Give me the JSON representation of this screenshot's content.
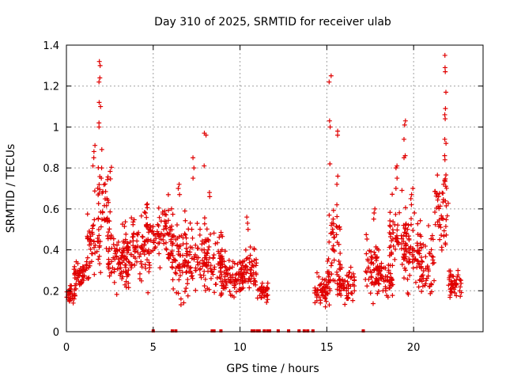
{
  "chart_data": {
    "type": "scatter",
    "title": "Day 310 of 2025, SRMTID for receiver ulab",
    "xlabel": "GPS time / hours",
    "ylabel": "SRMTID / TECUs",
    "xlim": [
      0,
      24
    ],
    "ylim": [
      0,
      1.4
    ],
    "xticks": [
      0,
      5,
      10,
      15,
      20
    ],
    "yticks": [
      0,
      0.2,
      0.4,
      0.6,
      0.8,
      1,
      1.2,
      1.4
    ],
    "xtick_labels": [
      "0",
      "5",
      "10",
      "15",
      "20"
    ],
    "ytick_labels": [
      "0",
      "0.2",
      "0.4",
      "0.6",
      "0.8",
      "1",
      "1.2",
      "1.4"
    ],
    "grid": true,
    "marker": "+",
    "color": "#e00000",
    "series": [
      {
        "name": "SRMTID",
        "clusters": [
          {
            "x_start": 0.0,
            "x_end": 0.5,
            "level": 0.13,
            "spread": 0.04
          },
          {
            "x_start": 0.4,
            "x_end": 1.3,
            "level": 0.23,
            "spread": 0.06
          },
          {
            "x_start": 1.2,
            "x_end": 2.0,
            "level": 0.4,
            "spread": 0.15
          },
          {
            "x_start": 1.8,
            "x_end": 2.6,
            "level": 0.55,
            "spread": 0.18
          },
          {
            "x_start": 2.4,
            "x_end": 3.6,
            "level": 0.3,
            "spread": 0.12
          },
          {
            "x_start": 3.2,
            "x_end": 4.8,
            "level": 0.35,
            "spread": 0.12
          },
          {
            "x_start": 4.6,
            "x_end": 6.2,
            "level": 0.42,
            "spread": 0.12
          },
          {
            "x_start": 6.0,
            "x_end": 7.0,
            "level": 0.3,
            "spread": 0.15
          },
          {
            "x_start": 6.8,
            "x_end": 8.2,
            "level": 0.32,
            "spread": 0.15
          },
          {
            "x_start": 8.0,
            "x_end": 9.0,
            "level": 0.3,
            "spread": 0.12
          },
          {
            "x_start": 8.8,
            "x_end": 10.2,
            "level": 0.22,
            "spread": 0.08
          },
          {
            "x_start": 10.0,
            "x_end": 11.0,
            "level": 0.25,
            "spread": 0.1
          },
          {
            "x_start": 11.0,
            "x_end": 11.6,
            "level": 0.15,
            "spread": 0.04
          },
          {
            "x_start": 14.3,
            "x_end": 15.2,
            "level": 0.15,
            "spread": 0.06
          },
          {
            "x_start": 15.0,
            "x_end": 15.8,
            "level": 0.35,
            "spread": 0.18
          },
          {
            "x_start": 15.6,
            "x_end": 16.6,
            "level": 0.18,
            "spread": 0.07
          },
          {
            "x_start": 17.2,
            "x_end": 18.0,
            "level": 0.28,
            "spread": 0.14
          },
          {
            "x_start": 17.8,
            "x_end": 18.8,
            "level": 0.22,
            "spread": 0.08
          },
          {
            "x_start": 18.6,
            "x_end": 19.6,
            "level": 0.4,
            "spread": 0.15
          },
          {
            "x_start": 19.4,
            "x_end": 20.4,
            "level": 0.35,
            "spread": 0.15
          },
          {
            "x_start": 20.2,
            "x_end": 21.2,
            "level": 0.3,
            "spread": 0.12
          },
          {
            "x_start": 21.2,
            "x_end": 22.0,
            "level": 0.55,
            "spread": 0.18
          },
          {
            "x_start": 22.0,
            "x_end": 22.8,
            "level": 0.18,
            "spread": 0.06
          }
        ],
        "peaks": [
          {
            "x": 1.9,
            "values": [
              1.32,
              1.3,
              1.24,
              1.22,
              1.12,
              1.1,
              1.02,
              1.0
            ]
          },
          {
            "x": 1.6,
            "values": [
              0.91,
              0.88,
              0.85,
              0.81
            ]
          },
          {
            "x": 2.0,
            "values": [
              0.89,
              0.8,
              0.75
            ]
          },
          {
            "x": 4.6,
            "values": [
              0.62,
              0.58
            ]
          },
          {
            "x": 6.5,
            "values": [
              0.72,
              0.7,
              0.67
            ]
          },
          {
            "x": 7.3,
            "values": [
              0.85,
              0.8,
              0.75
            ]
          },
          {
            "x": 8.0,
            "values": [
              0.97,
              0.96,
              0.81
            ]
          },
          {
            "x": 8.2,
            "values": [
              0.68,
              0.66
            ]
          },
          {
            "x": 10.4,
            "values": [
              0.56,
              0.53,
              0.5
            ]
          },
          {
            "x": 15.2,
            "values": [
              1.25,
              1.22,
              1.03,
              1.0,
              0.82
            ]
          },
          {
            "x": 15.6,
            "values": [
              0.98,
              0.96,
              0.76,
              0.72,
              0.62
            ]
          },
          {
            "x": 15.3,
            "values": [
              0.55,
              0.52,
              0.48
            ]
          },
          {
            "x": 17.7,
            "values": [
              0.6,
              0.58,
              0.55
            ]
          },
          {
            "x": 19.0,
            "values": [
              0.81,
              0.8,
              0.75,
              0.7
            ]
          },
          {
            "x": 19.5,
            "values": [
              1.03,
              1.01,
              0.94,
              0.86,
              0.85
            ]
          },
          {
            "x": 19.9,
            "values": [
              0.7,
              0.67,
              0.65,
              0.62
            ]
          },
          {
            "x": 21.8,
            "values": [
              1.35,
              1.29,
              1.27,
              1.17,
              1.09,
              1.06,
              1.04,
              0.94,
              0.92,
              0.86,
              0.84,
              0.74,
              0.72
            ]
          }
        ],
        "zeros": [
          5.0,
          6.1,
          6.3,
          8.4,
          8.5,
          8.9,
          10.7,
          10.8,
          11.0,
          11.1,
          11.4,
          11.6,
          11.7,
          12.2,
          12.8,
          13.4,
          13.7,
          13.9,
          14.2,
          17.1
        ]
      }
    ]
  }
}
